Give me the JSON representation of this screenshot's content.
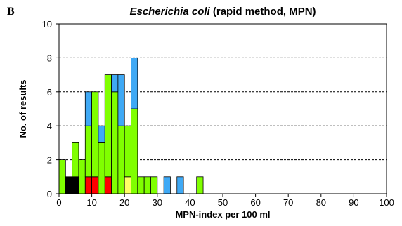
{
  "panel_label": "B",
  "title_italic": "Escherichia coli",
  "title_rest": " (rapid method, MPN)",
  "colors": {
    "green": "#80ff00",
    "blue": "#3fa9f5",
    "red": "#ff0000",
    "yellow": "#ffff66",
    "black": "#000000",
    "edge": "#000000",
    "grid": "#000000"
  },
  "chart_data": {
    "type": "bar",
    "stacked": true,
    "title": "Escherichia coli (rapid method, MPN)",
    "xlabel": "MPN-index per 100 ml",
    "ylabel": "No. of results",
    "xlim": [
      0,
      100
    ],
    "ylim": [
      0,
      10
    ],
    "x_ticks": [
      0,
      10,
      20,
      30,
      40,
      50,
      60,
      70,
      80,
      90,
      100
    ],
    "y_ticks": [
      0,
      2,
      4,
      6,
      8,
      10
    ],
    "grid": "horizontal dashed",
    "bin_width": 2,
    "bins": [
      {
        "x": 0,
        "layers": [
          {
            "color": "green",
            "count": 2
          }
        ]
      },
      {
        "x": 2,
        "layers": [
          {
            "color": "black",
            "count": 1
          }
        ]
      },
      {
        "x": 4,
        "layers": [
          {
            "color": "black",
            "count": 1
          },
          {
            "color": "green",
            "count": 2
          }
        ]
      },
      {
        "x": 6,
        "layers": [
          {
            "color": "green",
            "count": 2
          }
        ]
      },
      {
        "x": 8,
        "layers": [
          {
            "color": "red",
            "count": 1
          },
          {
            "color": "green",
            "count": 3
          },
          {
            "color": "blue",
            "count": 2
          }
        ]
      },
      {
        "x": 10,
        "layers": [
          {
            "color": "red",
            "count": 1
          },
          {
            "color": "green",
            "count": 5
          }
        ]
      },
      {
        "x": 12,
        "layers": [
          {
            "color": "green",
            "count": 3
          },
          {
            "color": "blue",
            "count": 1
          }
        ]
      },
      {
        "x": 14,
        "layers": [
          {
            "color": "red",
            "count": 1
          },
          {
            "color": "green",
            "count": 6
          }
        ]
      },
      {
        "x": 16,
        "layers": [
          {
            "color": "green",
            "count": 6
          },
          {
            "color": "blue",
            "count": 1
          }
        ]
      },
      {
        "x": 18,
        "layers": [
          {
            "color": "green",
            "count": 4
          },
          {
            "color": "blue",
            "count": 3
          }
        ]
      },
      {
        "x": 20,
        "layers": [
          {
            "color": "yellow",
            "count": 1
          },
          {
            "color": "green",
            "count": 3
          }
        ]
      },
      {
        "x": 22,
        "layers": [
          {
            "color": "green",
            "count": 5
          },
          {
            "color": "blue",
            "count": 3
          }
        ]
      },
      {
        "x": 24,
        "layers": [
          {
            "color": "green",
            "count": 1
          }
        ]
      },
      {
        "x": 26,
        "layers": [
          {
            "color": "green",
            "count": 1
          }
        ]
      },
      {
        "x": 28,
        "layers": [
          {
            "color": "green",
            "count": 1
          }
        ]
      },
      {
        "x": 32,
        "layers": [
          {
            "color": "blue",
            "count": 1
          }
        ]
      },
      {
        "x": 36,
        "layers": [
          {
            "color": "blue",
            "count": 1
          }
        ]
      },
      {
        "x": 42,
        "layers": [
          {
            "color": "green",
            "count": 1
          }
        ]
      }
    ]
  }
}
